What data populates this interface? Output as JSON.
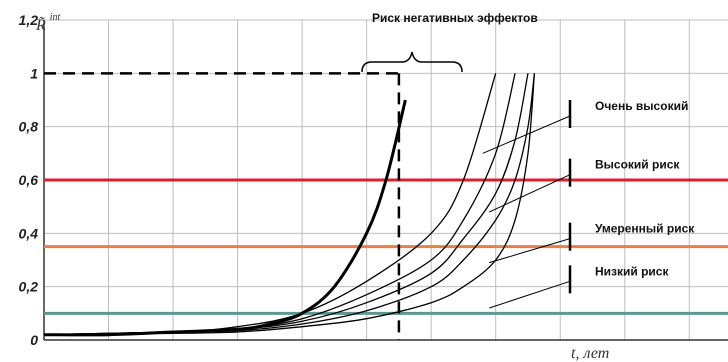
{
  "chart_data": {
    "type": "line",
    "title": "Риск негативных эффектов",
    "ylabel": "R̃",
    "ylabel_superscript": "int",
    "xlabel": "t, лет",
    "ylim": [
      0,
      1.2
    ],
    "xlim": [
      0,
      10.6
    ],
    "y_ticks": [
      "0",
      "0,2",
      "0,4",
      "0,6",
      "0,8",
      "1",
      "1,2"
    ],
    "y_tick_values": [
      0,
      0.2,
      0.4,
      0.6,
      0.8,
      1.0,
      1.2
    ],
    "grid": true,
    "reference_line": {
      "y": 1.0,
      "style": "dashed"
    },
    "critical_time_line": {
      "x": 5.5,
      "style": "dashed"
    },
    "thresholds": [
      {
        "y": 0.6,
        "color": "#d9212b"
      },
      {
        "y": 0.35,
        "color": "#ef7a4a"
      },
      {
        "y": 0.1,
        "color": "#5a9890"
      }
    ],
    "series": [
      {
        "bold": true,
        "points": [
          [
            0,
            0.02
          ],
          [
            1,
            0.02
          ],
          [
            2,
            0.03
          ],
          [
            3,
            0.04
          ],
          [
            3.5,
            0.06
          ],
          [
            4,
            0.1
          ],
          [
            4.5,
            0.2
          ],
          [
            5,
            0.4
          ],
          [
            5.3,
            0.6
          ],
          [
            5.6,
            0.9
          ]
        ]
      },
      {
        "bold": false,
        "points": [
          [
            0,
            0.02
          ],
          [
            2,
            0.03
          ],
          [
            3,
            0.05
          ],
          [
            4,
            0.1
          ],
          [
            5,
            0.22
          ],
          [
            6,
            0.4
          ],
          [
            6.5,
            0.6
          ],
          [
            7,
            1.0
          ]
        ]
      },
      {
        "bold": false,
        "points": [
          [
            0,
            0.02
          ],
          [
            2,
            0.03
          ],
          [
            3,
            0.04
          ],
          [
            4,
            0.08
          ],
          [
            5,
            0.17
          ],
          [
            6,
            0.3
          ],
          [
            6.5,
            0.45
          ],
          [
            7,
            0.7
          ],
          [
            7.3,
            1.0
          ]
        ]
      },
      {
        "bold": false,
        "points": [
          [
            0,
            0.02
          ],
          [
            2,
            0.03
          ],
          [
            3,
            0.04
          ],
          [
            4,
            0.07
          ],
          [
            5,
            0.14
          ],
          [
            6,
            0.25
          ],
          [
            6.5,
            0.38
          ],
          [
            7,
            0.55
          ],
          [
            7.3,
            0.75
          ],
          [
            7.5,
            1.0
          ]
        ]
      },
      {
        "bold": false,
        "points": [
          [
            0,
            0.02
          ],
          [
            2,
            0.03
          ],
          [
            3,
            0.035
          ],
          [
            4,
            0.06
          ],
          [
            5,
            0.11
          ],
          [
            6,
            0.2
          ],
          [
            6.5,
            0.3
          ],
          [
            7,
            0.45
          ],
          [
            7.3,
            0.6
          ],
          [
            7.5,
            0.8
          ],
          [
            7.6,
            1.0
          ]
        ]
      },
      {
        "bold": false,
        "points": [
          [
            0,
            0.02
          ],
          [
            2,
            0.025
          ],
          [
            3,
            0.03
          ],
          [
            4,
            0.05
          ],
          [
            5,
            0.08
          ],
          [
            6,
            0.14
          ],
          [
            6.5,
            0.2
          ],
          [
            7,
            0.3
          ],
          [
            7.3,
            0.45
          ],
          [
            7.5,
            0.7
          ],
          [
            7.6,
            1.0
          ]
        ]
      }
    ],
    "annotations": [
      {
        "text": "Очень высокий",
        "y_level": 0.84,
        "from": [
          6.8,
          0.7
        ]
      },
      {
        "text": "Высокий риск",
        "y_level": 0.62,
        "from": [
          6.9,
          0.48
        ]
      },
      {
        "text": "Умеренный риск",
        "y_level": 0.38,
        "from": [
          6.9,
          0.29
        ]
      },
      {
        "text": "Низкий риск",
        "y_level": 0.22,
        "from": [
          6.9,
          0.12
        ]
      }
    ]
  }
}
